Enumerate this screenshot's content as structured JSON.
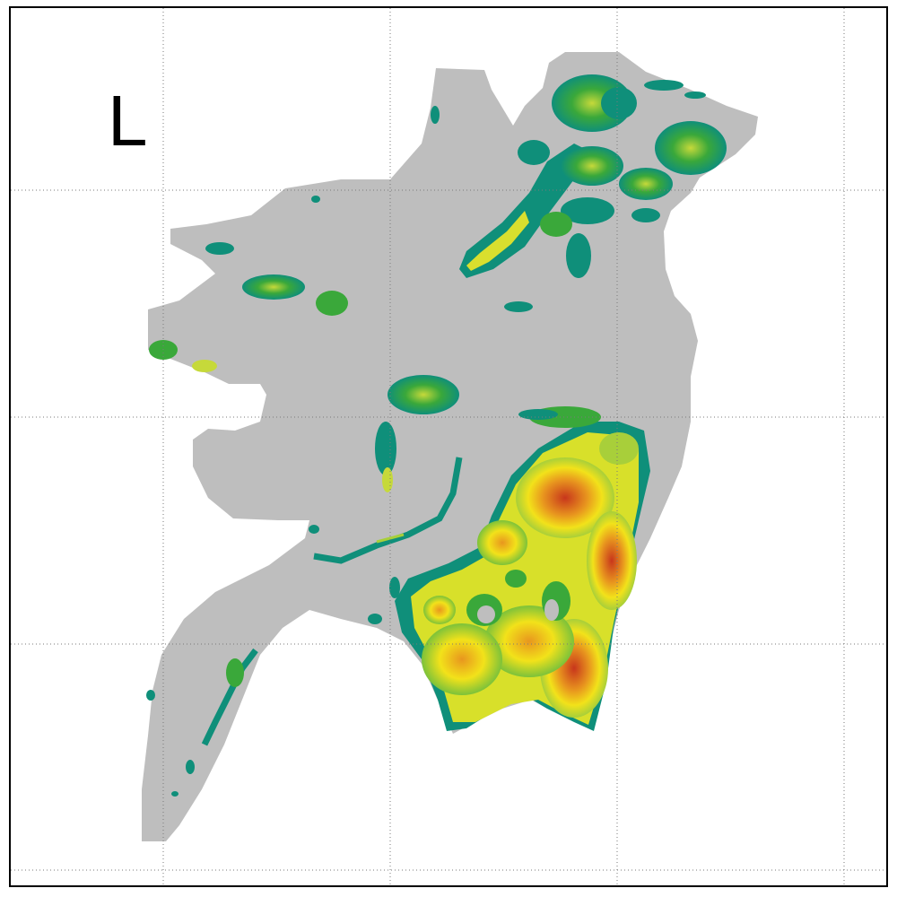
{
  "panel": {
    "label": "L"
  },
  "colors": {
    "mask": "#bebebe",
    "teal": "#0f8f7a",
    "green": "#3aa83a",
    "yellowgreen": "#a8cf3a",
    "yellow": "#f2e21a",
    "orange": "#e8961e",
    "red": "#c8361c",
    "background": "#ffffff",
    "frame": "#000000",
    "gridline": "#7a7a7a"
  },
  "legend": "none",
  "grid": true
}
